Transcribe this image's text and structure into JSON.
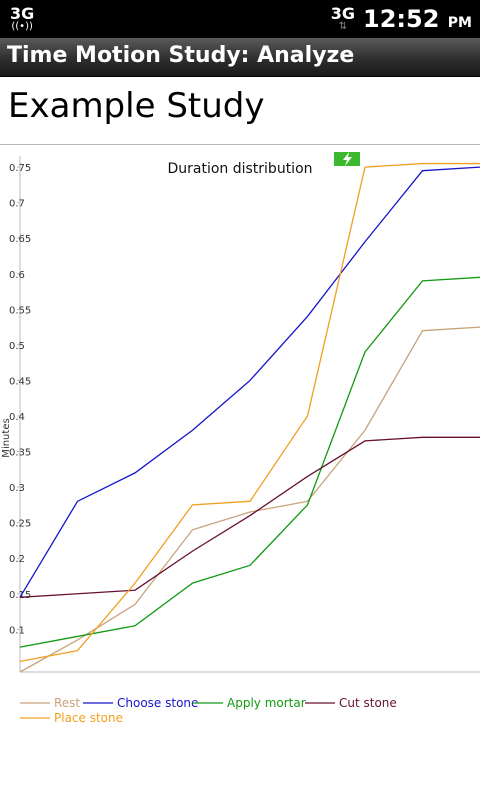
{
  "status_bar": {
    "network_left": "3G",
    "network_right": "3G",
    "time": "12:52",
    "ampm": "PM",
    "icons": [
      "alert-icon",
      "network-3g-icon",
      "usb-icon",
      "gps-icon",
      "signal-icon",
      "battery-charging-icon"
    ]
  },
  "app": {
    "title": "Time Motion Study: Analyze"
  },
  "study": {
    "name": "Example Study"
  },
  "chart_data": {
    "type": "line",
    "title": "Duration distribution",
    "ylabel": "Minutes",
    "xlabel": "",
    "ylim": [
      0.04,
      0.76
    ],
    "yticks": [
      "0.1",
      "0.15",
      "0.2",
      "0.25",
      "0.3",
      "0.35",
      "0.4",
      "0.45",
      "0.5",
      "0.55",
      "0.6",
      "0.65",
      "0.7",
      "0.75"
    ],
    "grid": false,
    "legend_position": "bottom",
    "x": [
      0,
      1,
      2,
      3,
      4,
      5,
      6,
      7,
      8
    ],
    "series": [
      {
        "name": "Rest",
        "color": "#c8a27a",
        "values": [
          0.04,
          0.085,
          0.135,
          0.24,
          0.265,
          0.28,
          0.38,
          0.52,
          0.525
        ]
      },
      {
        "name": "Choose stone",
        "color": "#1515cc",
        "values": [
          0.145,
          0.28,
          0.32,
          0.38,
          0.45,
          0.54,
          0.645,
          0.745,
          0.75
        ]
      },
      {
        "name": "Apply mortar",
        "color": "#129a12",
        "values": [
          0.075,
          0.09,
          0.105,
          0.165,
          0.19,
          0.275,
          0.49,
          0.59,
          0.595
        ]
      },
      {
        "name": "Cut stone",
        "color": "#661133",
        "values": [
          0.145,
          0.15,
          0.155,
          0.21,
          0.26,
          0.315,
          0.365,
          0.37,
          0.37
        ]
      },
      {
        "name": "Place stone",
        "color": "#f0a020",
        "values": [
          0.055,
          0.07,
          0.165,
          0.275,
          0.28,
          0.4,
          0.75,
          0.755,
          0.755
        ]
      }
    ]
  }
}
